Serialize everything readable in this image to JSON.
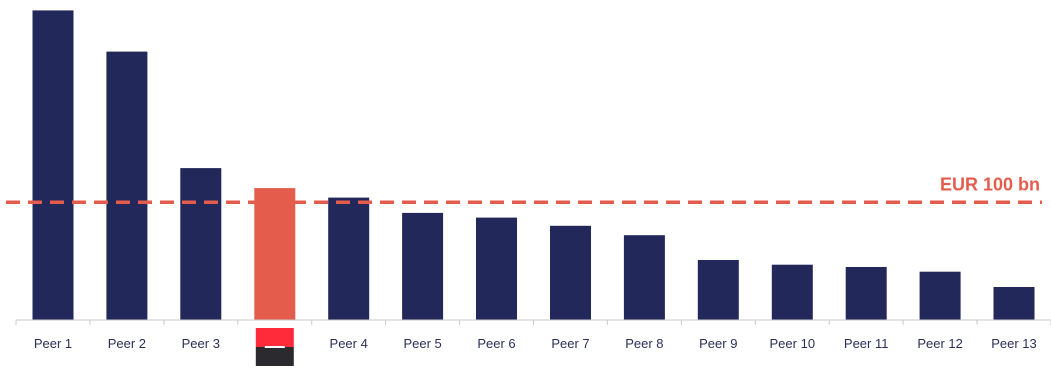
{
  "colors": {
    "bar": "#23285a",
    "highlight": "#e45d4c",
    "reference": "#e45d4c",
    "axis": "#c9c9c9",
    "logo_top": "#ff2a3a",
    "logo_bottom": "#2b2b2f"
  },
  "chart_data": {
    "type": "bar",
    "title": "",
    "xlabel": "",
    "ylabel": "",
    "grid": false,
    "ylim": [
      0,
      265
    ],
    "categories": [
      "Peer 1",
      "Peer 2",
      "Peer 3",
      "",
      "Peer 4",
      "Peer 5",
      "Peer 6",
      "Peer 7",
      "Peer 8",
      "Peer 9",
      "Peer 10",
      "Peer 11",
      "Peer 12",
      "Peer 13"
    ],
    "values": [
      263,
      228,
      129,
      112,
      104,
      91,
      87,
      80,
      72,
      51,
      47,
      45,
      41,
      28
    ],
    "highlight_index": 3,
    "highlight_label_icon": "company-logo-icon",
    "reference_line": {
      "value": 100,
      "label": "EUR 100 bn",
      "style": "dashed"
    }
  }
}
